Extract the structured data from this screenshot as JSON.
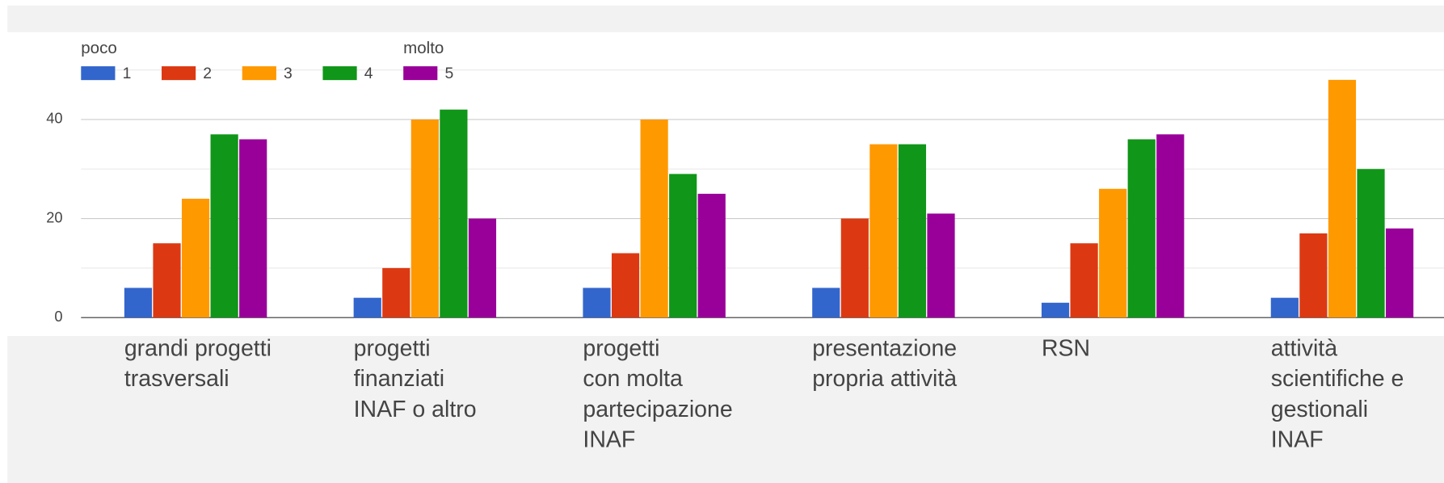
{
  "chart_data": {
    "type": "bar",
    "categories": [
      [
        "grandi progetti",
        "trasversali"
      ],
      [
        "progetti",
        "finanziati",
        "INAF o altro"
      ],
      [
        "progetti",
        "con molta",
        "partecipazione",
        "INAF"
      ],
      [
        "presentazione",
        "propria attività"
      ],
      [
        "RSN"
      ],
      [
        "attività",
        "scientifiche e",
        "gestionali",
        "INAF"
      ]
    ],
    "legend_notes": [
      "poco",
      "molto"
    ],
    "series": [
      {
        "name": "1",
        "color": "#3366cc",
        "values": [
          6,
          4,
          6,
          6,
          3,
          4
        ]
      },
      {
        "name": "2",
        "color": "#dc3912",
        "values": [
          15,
          10,
          13,
          20,
          15,
          17
        ]
      },
      {
        "name": "3",
        "color": "#ff9900",
        "values": [
          24,
          40,
          40,
          35,
          26,
          48
        ]
      },
      {
        "name": "4",
        "color": "#109618",
        "values": [
          37,
          42,
          29,
          35,
          36,
          30
        ]
      },
      {
        "name": "5",
        "color": "#990099",
        "values": [
          36,
          20,
          25,
          21,
          37,
          18
        ]
      }
    ],
    "ylim": [
      0,
      50
    ],
    "yticks": [
      0,
      20,
      40
    ],
    "minor_yticks": [
      10,
      30,
      50
    ],
    "grid": true,
    "legend": "top-left"
  }
}
